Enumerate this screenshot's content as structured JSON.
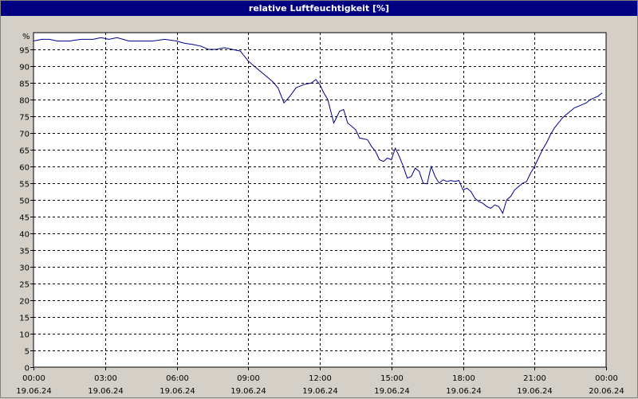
{
  "window": {
    "title": "relative Luftfeuchtigkeit [%]"
  },
  "chart_data": {
    "type": "line",
    "title": "relative Luftfeuchtigkeit [%]",
    "ylabel": "%",
    "xlabel": "",
    "ylim": [
      0,
      100
    ],
    "yticks": [
      0,
      5,
      10,
      15,
      20,
      25,
      30,
      35,
      40,
      45,
      50,
      55,
      60,
      65,
      70,
      75,
      80,
      85,
      90,
      95
    ],
    "xlim": [
      "2024-06-19 00:00",
      "2024-06-20 00:00"
    ],
    "xticks": [
      {
        "time": "00:00",
        "date": "19.06.24"
      },
      {
        "time": "03:00",
        "date": "19.06.24"
      },
      {
        "time": "06:00",
        "date": "19.06.24"
      },
      {
        "time": "09:00",
        "date": "19.06.24"
      },
      {
        "time": "12:00",
        "date": "19.06.24"
      },
      {
        "time": "15:00",
        "date": "19.06.24"
      },
      {
        "time": "18:00",
        "date": "19.06.24"
      },
      {
        "time": "21:00",
        "date": "19.06.24"
      },
      {
        "time": "00:00",
        "date": "20.06.24"
      }
    ],
    "grid": true,
    "line_color": "#00008b",
    "series": [
      {
        "values": [
          [
            "00:00",
            97.5
          ],
          [
            "00:20",
            98.0
          ],
          [
            "00:40",
            98.0
          ],
          [
            "01:00",
            97.5
          ],
          [
            "01:30",
            97.5
          ],
          [
            "02:00",
            98.0
          ],
          [
            "02:30",
            98.0
          ],
          [
            "02:50",
            98.5
          ],
          [
            "03:10",
            98.0
          ],
          [
            "03:30",
            98.5
          ],
          [
            "04:00",
            97.5
          ],
          [
            "04:30",
            97.5
          ],
          [
            "05:00",
            97.5
          ],
          [
            "05:30",
            98.0
          ],
          [
            "06:00",
            97.5
          ],
          [
            "06:20",
            96.8
          ],
          [
            "06:40",
            96.5
          ],
          [
            "07:00",
            96.0
          ],
          [
            "07:20",
            95.0
          ],
          [
            "07:40",
            95.0
          ],
          [
            "08:00",
            95.5
          ],
          [
            "08:20",
            95.0
          ],
          [
            "08:40",
            94.5
          ],
          [
            "09:00",
            91.5
          ],
          [
            "09:20",
            89.5
          ],
          [
            "09:40",
            87.5
          ],
          [
            "10:00",
            85.5
          ],
          [
            "10:15",
            83.5
          ],
          [
            "10:30",
            79.0
          ],
          [
            "10:45",
            81.0
          ],
          [
            "11:00",
            83.5
          ],
          [
            "11:20",
            84.5
          ],
          [
            "11:40",
            85.0
          ],
          [
            "11:50",
            86.0
          ],
          [
            "12:00",
            84.5
          ],
          [
            "12:10",
            82.0
          ],
          [
            "12:20",
            80.0
          ],
          [
            "12:35",
            73.0
          ],
          [
            "12:50",
            76.5
          ],
          [
            "13:00",
            77.0
          ],
          [
            "13:10",
            73.0
          ],
          [
            "13:30",
            71.0
          ],
          [
            "13:40",
            68.5
          ],
          [
            "14:00",
            68.0
          ],
          [
            "14:10",
            66.0
          ],
          [
            "14:20",
            64.5
          ],
          [
            "14:30",
            62.0
          ],
          [
            "14:40",
            61.5
          ],
          [
            "14:50",
            62.5
          ],
          [
            "15:00",
            62.0
          ],
          [
            "15:10",
            65.5
          ],
          [
            "15:20",
            63.0
          ],
          [
            "15:30",
            60.0
          ],
          [
            "15:40",
            56.5
          ],
          [
            "15:50",
            57.0
          ],
          [
            "16:00",
            59.5
          ],
          [
            "16:10",
            58.5
          ],
          [
            "16:20",
            55.0
          ],
          [
            "16:30",
            54.8
          ],
          [
            "16:40",
            60.0
          ],
          [
            "16:50",
            57.0
          ],
          [
            "17:00",
            55.0
          ],
          [
            "17:10",
            56.0
          ],
          [
            "17:20",
            55.5
          ],
          [
            "17:30",
            55.8
          ],
          [
            "17:40",
            55.5
          ],
          [
            "17:50",
            55.8
          ],
          [
            "18:00",
            53.0
          ],
          [
            "18:10",
            53.5
          ],
          [
            "18:20",
            52.5
          ],
          [
            "18:30",
            50.5
          ],
          [
            "18:40",
            49.5
          ],
          [
            "18:50",
            49.0
          ],
          [
            "19:00",
            48.0
          ],
          [
            "19:10",
            47.5
          ],
          [
            "19:20",
            48.5
          ],
          [
            "19:30",
            48.0
          ],
          [
            "19:40",
            46.0
          ],
          [
            "19:50",
            50.0
          ],
          [
            "20:00",
            51.0
          ],
          [
            "20:10",
            53.0
          ],
          [
            "20:20",
            54.0
          ],
          [
            "20:30",
            55.0
          ],
          [
            "20:40",
            55.5
          ],
          [
            "20:50",
            58.0
          ],
          [
            "21:00",
            60.0
          ],
          [
            "21:10",
            62.5
          ],
          [
            "21:20",
            65.0
          ],
          [
            "21:30",
            67.0
          ],
          [
            "21:40",
            69.5
          ],
          [
            "21:50",
            71.5
          ],
          [
            "22:00",
            73.0
          ],
          [
            "22:10",
            74.5
          ],
          [
            "22:20",
            75.5
          ],
          [
            "22:30",
            76.5
          ],
          [
            "22:40",
            77.5
          ],
          [
            "22:50",
            78.0
          ],
          [
            "23:00",
            78.5
          ],
          [
            "23:10",
            79.0
          ],
          [
            "23:20",
            80.0
          ],
          [
            "23:30",
            80.5
          ],
          [
            "23:40",
            81.0
          ],
          [
            "23:50",
            82.0
          ]
        ]
      }
    ]
  }
}
